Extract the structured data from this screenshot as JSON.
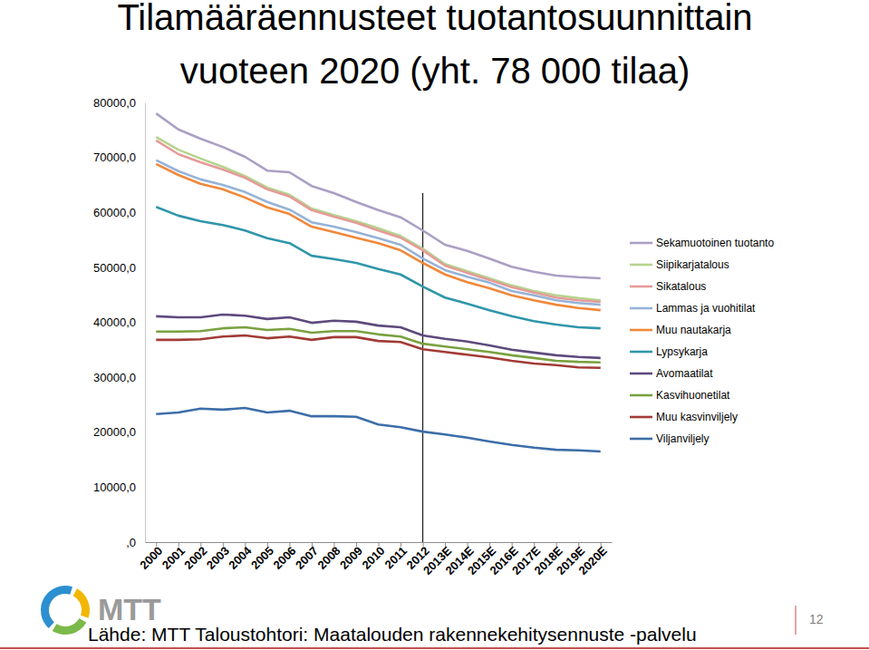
{
  "chart_data": {
    "type": "line",
    "title": "Tilamääräennusteet tuotantosuunnittain vuoteen 2020 (yht. 78 000 tilaa)",
    "source": "Lähde: MTT Taloustohtori: Maatalouden rakennekehitysennuste -palvelu",
    "logo_text": "MTT",
    "page_number": 12,
    "stacked": true,
    "grid": false,
    "legend": "right",
    "categories": [
      "2000",
      "2001",
      "2002",
      "2003",
      "2004",
      "2005",
      "2006",
      "2007",
      "2008",
      "2009",
      "2010",
      "2011",
      "2012",
      "2013E",
      "2014E",
      "2015E",
      "2016E",
      "2017E",
      "2018E",
      "2019E",
      "2020E"
    ],
    "ylim": [
      0,
      80000
    ],
    "yticks": [
      {
        "value": 0,
        "label": ",0"
      },
      {
        "value": 10000,
        "label": "10000,0"
      },
      {
        "value": 20000,
        "label": "20000,0"
      },
      {
        "value": 30000,
        "label": "30000,0"
      },
      {
        "value": 40000,
        "label": "40000,0"
      },
      {
        "value": 50000,
        "label": "50000,0"
      },
      {
        "value": 60000,
        "label": "60000,0"
      },
      {
        "value": 70000,
        "label": "70000,0"
      },
      {
        "value": 80000,
        "label": "80000,0"
      }
    ],
    "annotations": [
      {
        "x": "2012",
        "y": 63500
      }
    ],
    "series": [
      {
        "name": "Sekamuotoinen tuotanto",
        "color": "#ab9fc4",
        "values": [
          4300,
          3700,
          3600,
          3600,
          3500,
          3100,
          4100,
          4100,
          4000,
          3500,
          3300,
          3400,
          3300,
          3500,
          3700,
          3600,
          3400,
          3500,
          3600,
          3800,
          4000
        ]
      },
      {
        "name": "Siipikarjatalous",
        "color": "#b5d48e",
        "values": [
          600,
          800,
          700,
          500,
          300,
          300,
          300,
          300,
          300,
          300,
          400,
          300,
          300,
          300,
          300,
          300,
          300,
          300,
          400,
          400,
          300
        ]
      },
      {
        "name": "Sikatalous",
        "color": "#e59b98",
        "values": [
          3600,
          3100,
          3100,
          2800,
          2600,
          2300,
          2400,
          2200,
          1800,
          1700,
          1400,
          1300,
          1500,
          800,
          700,
          500,
          700,
          500,
          500,
          500,
          500
        ]
      },
      {
        "name": "Lammas ja vuohitilat",
        "color": "#95b3d7",
        "values": [
          700,
          700,
          800,
          800,
          1000,
          1000,
          800,
          800,
          1000,
          1000,
          900,
          1000,
          800,
          800,
          1000,
          1000,
          800,
          900,
          800,
          900,
          1000
        ]
      },
      {
        "name": "Muu nautakarja",
        "color": "#f0883a",
        "values": [
          7800,
          7400,
          6800,
          6500,
          6000,
          5600,
          5300,
          5300,
          4900,
          4600,
          4700,
          4400,
          4300,
          4200,
          3900,
          4000,
          3800,
          3800,
          3600,
          3500,
          3300
        ]
      },
      {
        "name": "Lypsykarja",
        "color": "#2f96aa",
        "values": [
          19900,
          18500,
          17500,
          16300,
          15500,
          14700,
          13500,
          12200,
          11200,
          10700,
          10300,
          9600,
          8900,
          7500,
          6900,
          6400,
          6100,
          5700,
          5600,
          5400,
          5400
        ]
      },
      {
        "name": "Avomaatilat",
        "color": "#5e4a7d",
        "values": [
          2800,
          2600,
          2500,
          2500,
          2100,
          2000,
          2100,
          1800,
          1900,
          1700,
          1600,
          1700,
          1500,
          1400,
          1400,
          1200,
          1000,
          1000,
          1000,
          900,
          800
        ]
      },
      {
        "name": "Kasvihuonetilat",
        "color": "#7aa13f",
        "values": [
          1500,
          1500,
          1500,
          1500,
          1500,
          1500,
          1400,
          1300,
          1100,
          1100,
          1200,
          1000,
          1000,
          1000,
          1000,
          1000,
          1000,
          1000,
          800,
          1000,
          1000
        ]
      },
      {
        "name": "Muu kasvinviljely",
        "color": "#a23b36",
        "values": [
          13500,
          13200,
          12600,
          13300,
          13200,
          13500,
          13500,
          13900,
          14400,
          14500,
          15200,
          15500,
          15000,
          15000,
          15100,
          15300,
          15300,
          15300,
          15400,
          15100,
          15200
        ]
      },
      {
        "name": "Viljanviljely",
        "color": "#3c6ea8",
        "values": [
          23300,
          23600,
          24300,
          24100,
          24400,
          23600,
          23900,
          22900,
          22900,
          22800,
          21400,
          20900,
          20100,
          19600,
          19000,
          18300,
          17700,
          17200,
          16800,
          16700,
          16500
        ]
      }
    ]
  }
}
